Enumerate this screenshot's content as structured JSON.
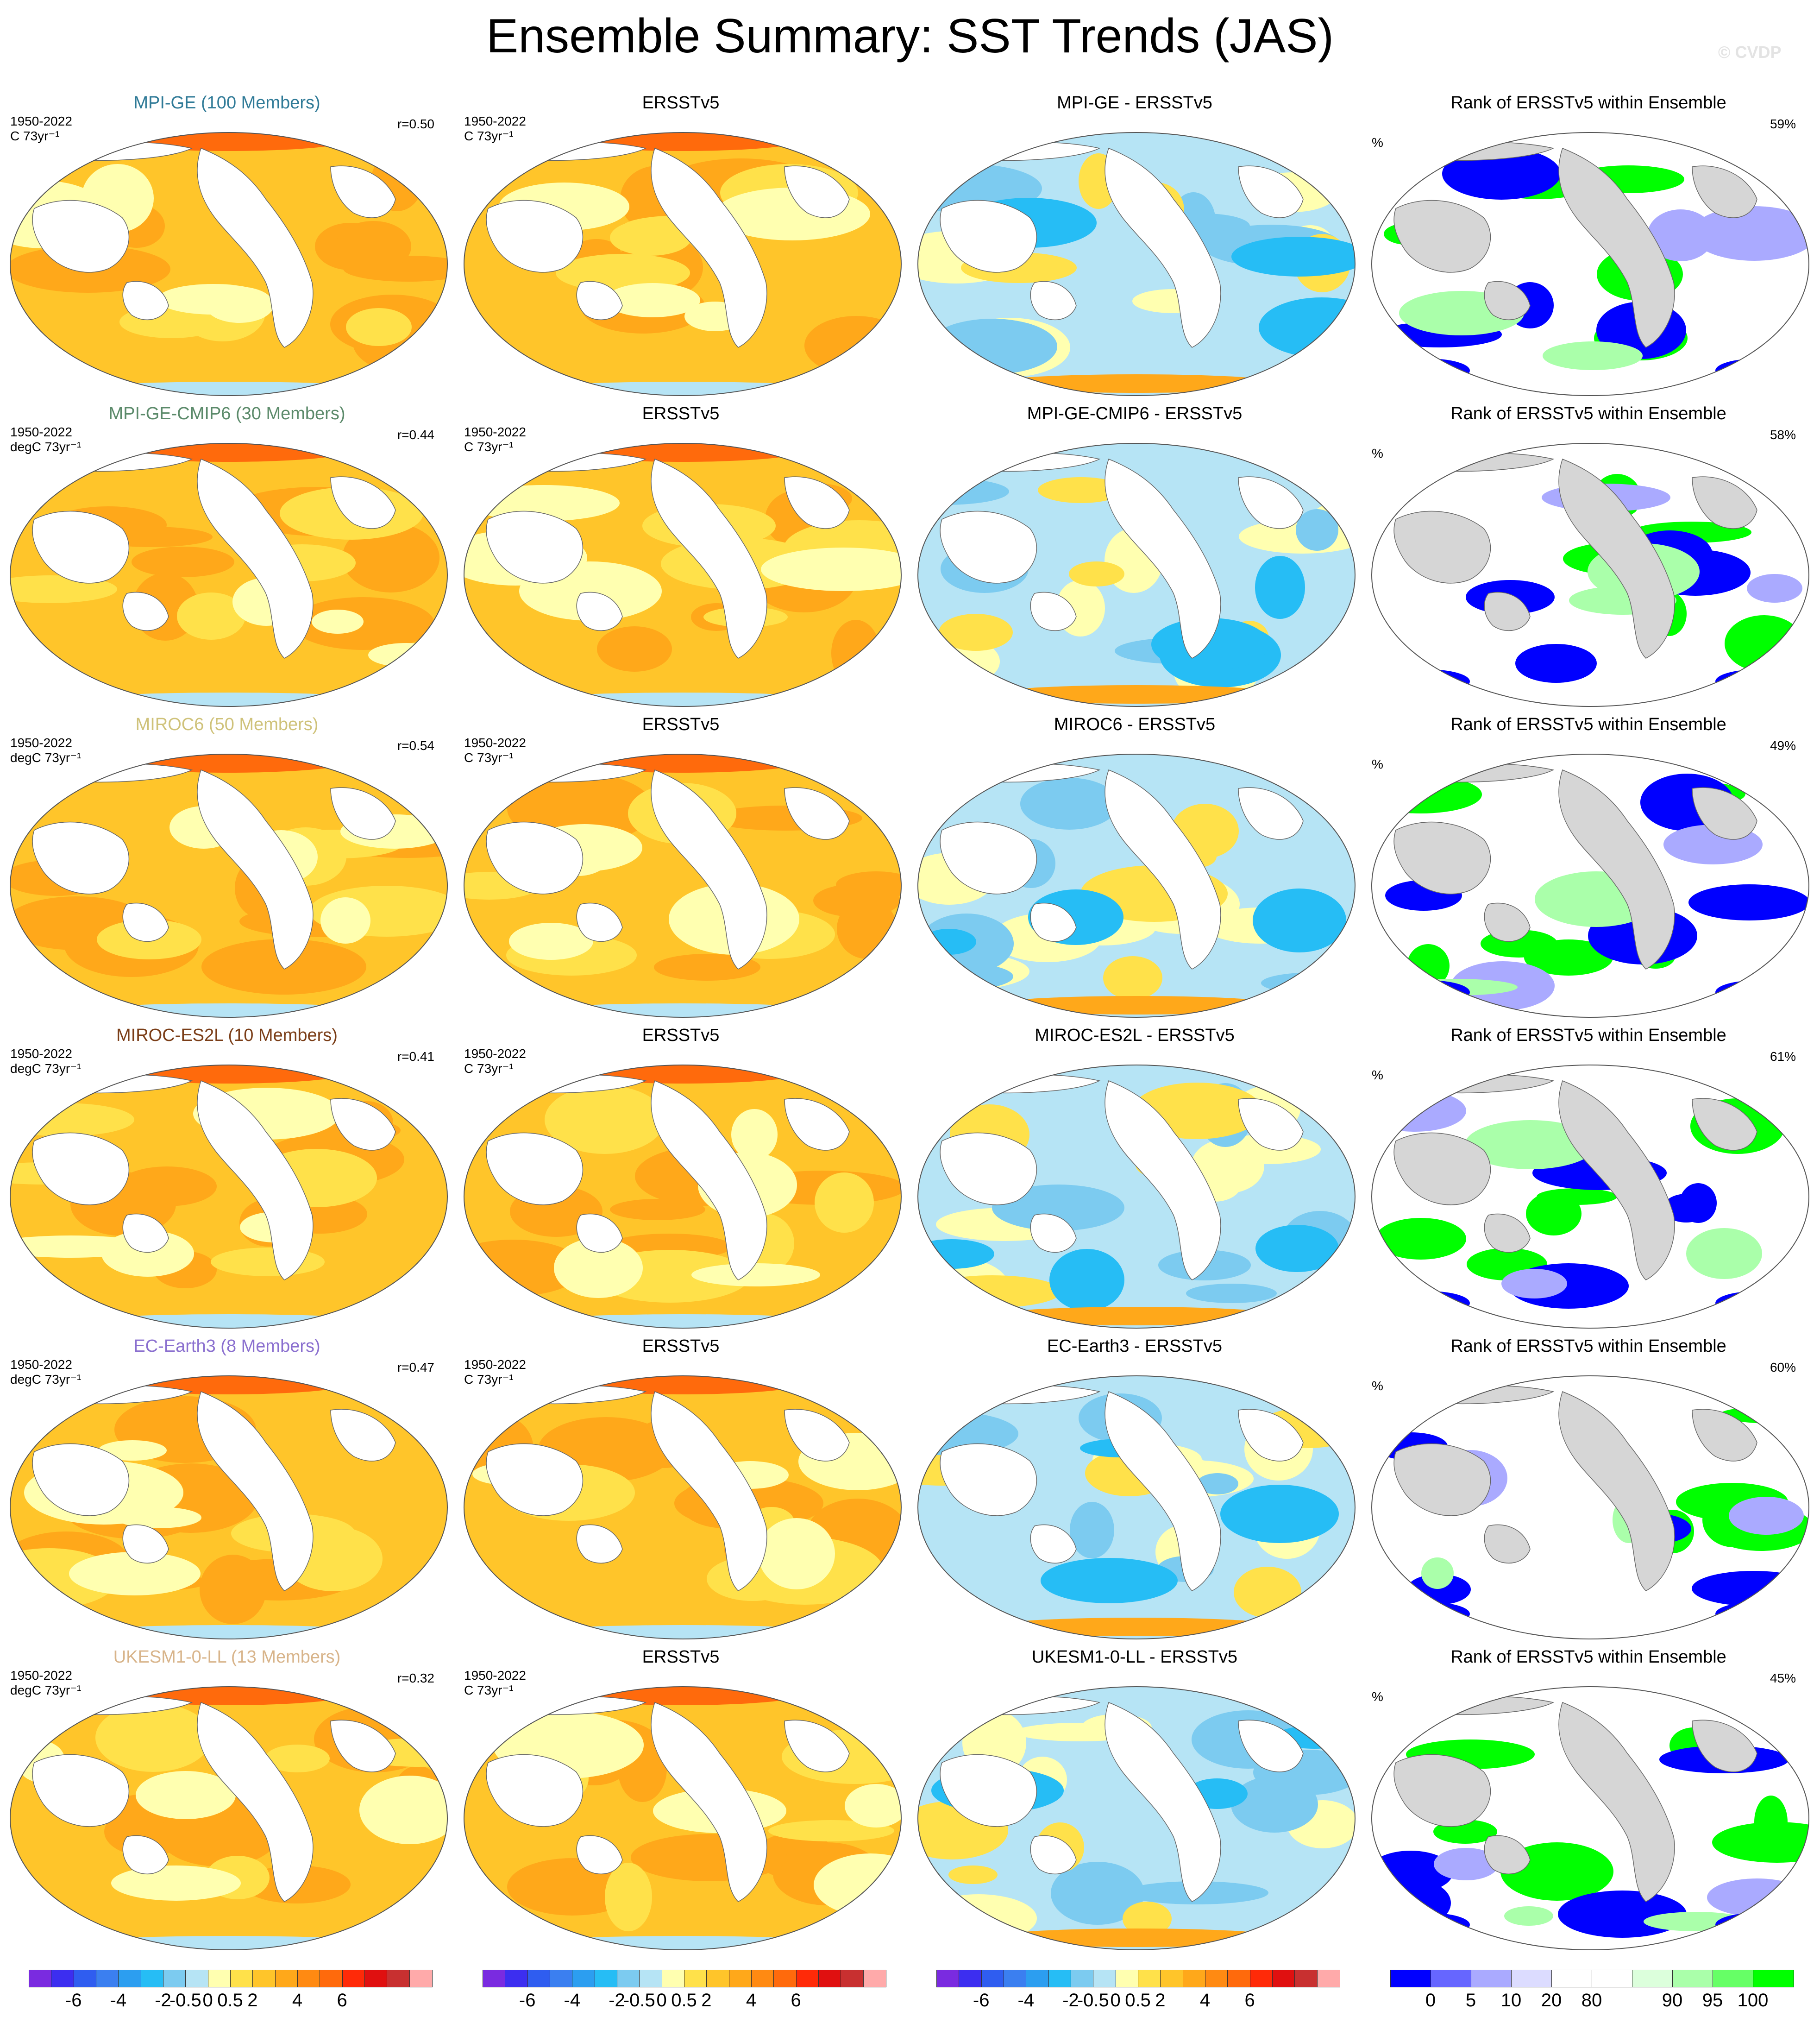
{
  "title": "Ensemble Summary: SST Trends (JAS)",
  "watermark": "© CVDP",
  "colors": {
    "trend_scale": [
      "#7a2be0",
      "#3c2ef0",
      "#2f5df0",
      "#3b7ff0",
      "#2c9ef0",
      "#26bdf5",
      "#7ccbf0",
      "#b6e4f5",
      "#ffffb0",
      "#ffe14a",
      "#ffc52a",
      "#ffa81a",
      "#ff8a12",
      "#ff6a0c",
      "#ff2a08",
      "#e01010",
      "#c83030",
      "#ffaaaa"
    ],
    "rank_scale": [
      "#0000ff",
      "#6666ff",
      "#aaaaff",
      "#dcdcff",
      "#ffffff",
      "#ffffff",
      "#dcffdc",
      "#aaffaa",
      "#66ff66",
      "#00ff00"
    ],
    "land_blank": "#ffffff",
    "land_grey": "#d6d6d6"
  },
  "rows": [
    {
      "model_title": "MPI-GE (100 Members)",
      "model_color": "#2f7a97",
      "model_meta1": "1950-2022",
      "model_meta2": "C 73yr⁻¹",
      "r": "r=0.50",
      "obs_title": "ERSSTv5",
      "obs_meta1": "1950-2022",
      "obs_meta2": "C 73yr⁻¹",
      "diff_title": "MPI-GE - ERSSTv5",
      "rank_title": "Rank of ERSSTv5 within Ensemble",
      "rank_pct": "59%",
      "rank_unit": "%"
    },
    {
      "model_title": "MPI-GE-CMIP6 (30 Members)",
      "model_color": "#5b8a6a",
      "model_meta1": "1950-2022",
      "model_meta2": "degC 73yr⁻¹",
      "r": "r=0.44",
      "obs_title": "ERSSTv5",
      "obs_meta1": "1950-2022",
      "obs_meta2": "C 73yr⁻¹",
      "diff_title": "MPI-GE-CMIP6 - ERSSTv5",
      "rank_title": "Rank of ERSSTv5 within Ensemble",
      "rank_pct": "58%",
      "rank_unit": "%"
    },
    {
      "model_title": "MIROC6 (50 Members)",
      "model_color": "#cfc27a",
      "model_meta1": "1950-2022",
      "model_meta2": "degC 73yr⁻¹",
      "r": "r=0.54",
      "obs_title": "ERSSTv5",
      "obs_meta1": "1950-2022",
      "obs_meta2": "C 73yr⁻¹",
      "diff_title": "MIROC6 - ERSSTv5",
      "rank_title": "Rank of ERSSTv5 within Ensemble",
      "rank_pct": "49%",
      "rank_unit": "%"
    },
    {
      "model_title": "MIROC-ES2L (10 Members)",
      "model_color": "#7a3d17",
      "model_meta1": "1950-2022",
      "model_meta2": "degC 73yr⁻¹",
      "r": "r=0.41",
      "obs_title": "ERSSTv5",
      "obs_meta1": "1950-2022",
      "obs_meta2": "C 73yr⁻¹",
      "diff_title": "MIROC-ES2L - ERSSTv5",
      "rank_title": "Rank of ERSSTv5 within Ensemble",
      "rank_pct": "61%",
      "rank_unit": "%"
    },
    {
      "model_title": "EC-Earth3 (8 Members)",
      "model_color": "#8a6fcf",
      "model_meta1": "1950-2022",
      "model_meta2": "degC 73yr⁻¹",
      "r": "r=0.47",
      "obs_title": "ERSSTv5",
      "obs_meta1": "1950-2022",
      "obs_meta2": "C 73yr⁻¹",
      "diff_title": "EC-Earth3 - ERSSTv5",
      "rank_title": "Rank of ERSSTv5 within Ensemble",
      "rank_pct": "60%",
      "rank_unit": "%"
    },
    {
      "model_title": "UKESM1-0-LL (13 Members)",
      "model_color": "#d8b48a",
      "model_meta1": "1950-2022",
      "model_meta2": "degC 73yr⁻¹",
      "r": "r=0.32",
      "obs_title": "ERSSTv5",
      "obs_meta1": "1950-2022",
      "obs_meta2": "C 73yr⁻¹",
      "diff_title": "UKESM1-0-LL - ERSSTv5",
      "rank_title": "Rank of ERSSTv5 within Ensemble",
      "rank_pct": "45%",
      "rank_unit": "%"
    }
  ],
  "colorbars": {
    "trend_labels": [
      "-6",
      "-4",
      "-2",
      "-0.5",
      "0",
      "0.5",
      "2",
      "4",
      "6"
    ],
    "rank_labels": [
      "0",
      "5",
      "10",
      "20",
      "80",
      "90",
      "95",
      "100"
    ]
  }
}
